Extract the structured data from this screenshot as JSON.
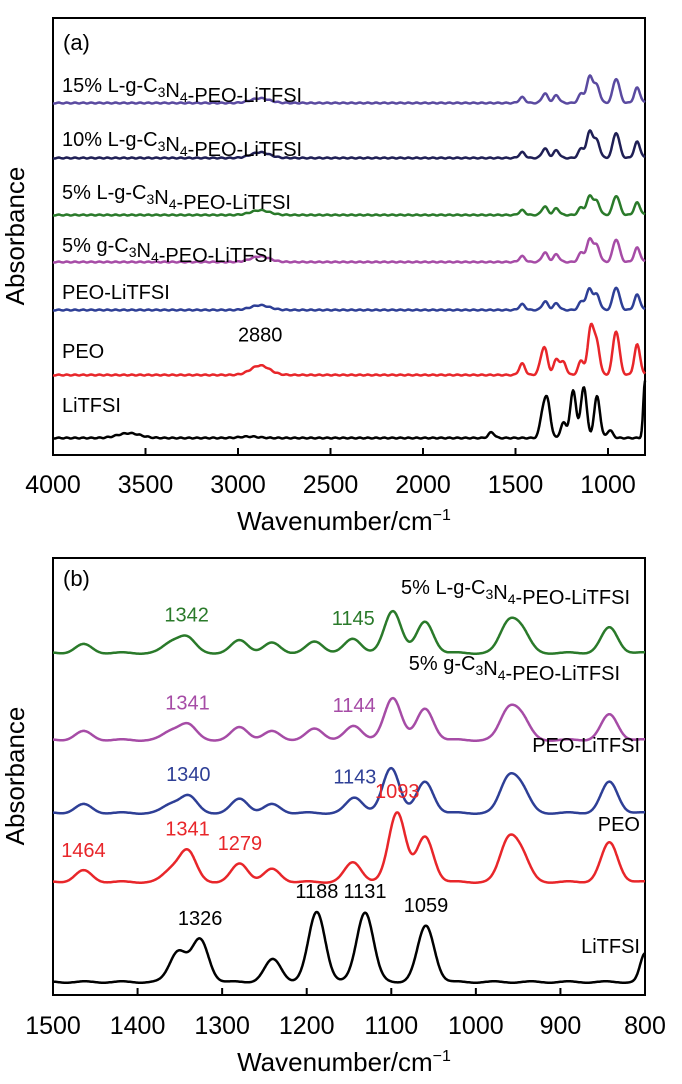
{
  "colors": {
    "LiTFSI": "#000000",
    "PEO": "#e8262a",
    "PEO-LiTFSI": "#2e3f96",
    "5% g-C3N4-PEO-LiTFSI": "#a64ca6",
    "5% L-g-C3N4-PEO-LiTFSI": "#2a7a2a",
    "10% L-g-C3N4-PEO-LiTFSI": "#1f1f55",
    "15% L-g-C3N4-PEO-LiTFSI": "#5a4aa0"
  },
  "chart_data": [
    {
      "type": "line",
      "panel": "(a)",
      "xlabel": "Wavenumber/cm",
      "xlabel_sup": "−1",
      "ylabel": "Absorbance",
      "xlim": [
        4000,
        800
      ],
      "xticks": [
        "4000",
        "3500",
        "3000",
        "2500",
        "2000",
        "1500",
        "1000"
      ],
      "xtick_values": [
        4000,
        3500,
        3000,
        2500,
        2000,
        1500,
        1000
      ],
      "series": [
        {
          "key": "LiTFSI",
          "name": "LiTFSI",
          "label_parts": [
            {
              "t": "LiTFSI"
            }
          ],
          "offset": 0,
          "peaks": [
            [
              3620,
              0.3
            ],
            [
              3560,
              0.3
            ],
            [
              2940,
              0.15
            ],
            [
              1630,
              0.6
            ],
            [
              1352,
              2.5
            ],
            [
              1326,
              3.5
            ],
            [
              1240,
              1.6
            ],
            [
              1188,
              5.0
            ],
            [
              1131,
              5.4
            ],
            [
              1059,
              4.4
            ],
            [
              990,
              0.8
            ],
            [
              800,
              6.0
            ]
          ]
        },
        {
          "key": "PEO",
          "name": "PEO",
          "label_parts": [
            {
              "t": "PEO"
            }
          ],
          "offset": 1,
          "peaks": [
            [
              2880,
              1.0
            ],
            [
              1464,
              1.2
            ],
            [
              1360,
              1.0
            ],
            [
              1341,
              2.4
            ],
            [
              1279,
              1.6
            ],
            [
              1241,
              1.3
            ],
            [
              1145,
              1.5
            ],
            [
              1093,
              5.0
            ],
            [
              1060,
              3.2
            ],
            [
              962,
              3.2
            ],
            [
              946,
              2.0
            ],
            [
              842,
              3.2
            ]
          ],
          "annotation": "2880"
        },
        {
          "key": "PEO-LiTFSI",
          "name": "PEO-LiTFSI",
          "label_parts": [
            {
              "t": "PEO-LiTFSI"
            }
          ],
          "offset": 2,
          "peaks": [
            [
              2880,
              0.5
            ],
            [
              1464,
              0.6
            ],
            [
              1340,
              0.9
            ],
            [
              1279,
              0.7
            ],
            [
              1143,
              0.9
            ],
            [
              1100,
              2.2
            ],
            [
              1060,
              1.6
            ],
            [
              962,
              1.6
            ],
            [
              946,
              1.1
            ],
            [
              842,
              1.6
            ]
          ]
        },
        {
          "key": "5% g-C3N4-PEO-LiTFSI",
          "name": "5% g-C3N4-PEO-LiTFSI",
          "label_parts": [
            {
              "t": "5% g-C"
            },
            {
              "t": "3",
              "sub": true
            },
            {
              "t": "N"
            },
            {
              "t": "4",
              "sub": true
            },
            {
              "t": "-PEO-LiTFSI"
            }
          ],
          "offset": 3,
          "peaks": [
            [
              2880,
              0.6
            ],
            [
              1464,
              0.6
            ],
            [
              1341,
              1.0
            ],
            [
              1279,
              0.8
            ],
            [
              1144,
              1.0
            ],
            [
              1098,
              2.4
            ],
            [
              1060,
              1.7
            ],
            [
              962,
              1.6
            ],
            [
              946,
              1.1
            ],
            [
              842,
              1.5
            ]
          ]
        },
        {
          "key": "5% L-g-C3N4-PEO-LiTFSI",
          "name": "5% L-g-C3N4-PEO-LiTFSI",
          "label_parts": [
            {
              "t": "5% L-g-C"
            },
            {
              "t": "3",
              "sub": true
            },
            {
              "t": "N"
            },
            {
              "t": "4",
              "sub": true
            },
            {
              "t": "-PEO-LiTFSI"
            }
          ],
          "offset": 4,
          "peaks": [
            [
              2880,
              0.5
            ],
            [
              1464,
              0.5
            ],
            [
              1342,
              0.9
            ],
            [
              1279,
              0.7
            ],
            [
              1145,
              0.8
            ],
            [
              1098,
              2.0
            ],
            [
              1060,
              1.4
            ],
            [
              962,
              1.3
            ],
            [
              946,
              1.0
            ],
            [
              842,
              1.3
            ]
          ]
        },
        {
          "key": "10% L-g-C3N4-PEO-LiTFSI",
          "name": "10% L-g-C3N4-PEO-LiTFSI",
          "label_parts": [
            {
              "t": "10% L-g-C"
            },
            {
              "t": "3",
              "sub": true
            },
            {
              "t": "N"
            },
            {
              "t": "4",
              "sub": true
            },
            {
              "t": "-PEO-LiTFSI"
            }
          ],
          "offset": 5,
          "peaks": [
            [
              2880,
              0.6
            ],
            [
              1464,
              0.6
            ],
            [
              1341,
              1.0
            ],
            [
              1279,
              0.8
            ],
            [
              1144,
              1.0
            ],
            [
              1098,
              2.8
            ],
            [
              1060,
              1.8
            ],
            [
              962,
              1.8
            ],
            [
              946,
              1.2
            ],
            [
              842,
              1.7
            ]
          ]
        },
        {
          "key": "15% L-g-C3N4-PEO-LiTFSI",
          "name": "15% L-g-C3N4-PEO-LiTFSI",
          "label_parts": [
            {
              "t": "15% L-g-C"
            },
            {
              "t": "3",
              "sub": true
            },
            {
              "t": "N"
            },
            {
              "t": "4",
              "sub": true
            },
            {
              "t": "-PEO-LiTFSI"
            }
          ],
          "offset": 6,
          "peaks": [
            [
              2880,
              0.5
            ],
            [
              1464,
              0.6
            ],
            [
              1341,
              1.0
            ],
            [
              1279,
              0.8
            ],
            [
              1144,
              1.0
            ],
            [
              1098,
              2.8
            ],
            [
              1060,
              1.8
            ],
            [
              962,
              1.7
            ],
            [
              946,
              1.2
            ],
            [
              842,
              1.6
            ]
          ]
        }
      ]
    },
    {
      "type": "line",
      "panel": "(b)",
      "xlabel": "Wavenumber/cm",
      "xlabel_sup": "−1",
      "ylabel": "Absorbance",
      "xlim": [
        1500,
        800
      ],
      "xticks": [
        "1500",
        "1400",
        "1300",
        "1200",
        "1100",
        "1000",
        "900",
        "800"
      ],
      "xtick_values": [
        1500,
        1400,
        1300,
        1200,
        1100,
        1000,
        900,
        800
      ],
      "series": [
        {
          "key": "LiTFSI",
          "name": "LiTFSI",
          "label_parts": [
            {
              "t": "LiTFSI"
            }
          ],
          "offset": 0,
          "peaks": [
            [
              1352,
              2.2
            ],
            [
              1326,
              3.0
            ],
            [
              1240,
              1.6
            ],
            [
              1188,
              5.0
            ],
            [
              1131,
              5.0
            ],
            [
              1059,
              4.0
            ],
            [
              800,
              2.0
            ]
          ],
          "annotations": [
            {
              "text": "1326",
              "x": 1326,
              "color": "#000000"
            },
            {
              "text": "1188",
              "x": 1188,
              "color": "#000000"
            },
            {
              "text": "1131",
              "x": 1131,
              "color": "#000000"
            },
            {
              "text": "1059",
              "x": 1059,
              "color": "#000000"
            }
          ]
        },
        {
          "key": "PEO",
          "name": "PEO",
          "label_parts": [
            {
              "t": "PEO"
            }
          ],
          "offset": 1,
          "peaks": [
            [
              1464,
              0.8
            ],
            [
              1360,
              0.8
            ],
            [
              1341,
              2.2
            ],
            [
              1279,
              1.3
            ],
            [
              1241,
              0.9
            ],
            [
              1145,
              1.4
            ],
            [
              1093,
              5.0
            ],
            [
              1060,
              3.2
            ],
            [
              962,
              2.8
            ],
            [
              946,
              1.8
            ],
            [
              842,
              2.8
            ]
          ],
          "annotations": [
            {
              "text": "1464",
              "x": 1464,
              "color": "#e8262a"
            },
            {
              "text": "1341",
              "x": 1341,
              "color": "#e8262a"
            },
            {
              "text": "1279",
              "x": 1279,
              "color": "#e8262a"
            },
            {
              "text": "1093",
              "x": 1093,
              "color": "#e8262a"
            }
          ]
        },
        {
          "key": "PEO-LiTFSI",
          "name": "PEO-LiTFSI",
          "label_parts": [
            {
              "t": "PEO-LiTFSI"
            }
          ],
          "offset": 2,
          "peaks": [
            [
              1464,
              0.6
            ],
            [
              1360,
              0.6
            ],
            [
              1340,
              1.2
            ],
            [
              1279,
              1.0
            ],
            [
              1241,
              0.6
            ],
            [
              1143,
              1.1
            ],
            [
              1100,
              3.2
            ],
            [
              1060,
              2.2
            ],
            [
              962,
              2.3
            ],
            [
              946,
              1.6
            ],
            [
              842,
              2.2
            ]
          ],
          "annotations": [
            {
              "text": "1340",
              "x": 1340,
              "color": "#2e3f96"
            },
            {
              "text": "1143",
              "x": 1143,
              "color": "#2e3f96"
            }
          ]
        },
        {
          "key": "5% g-C3N4-PEO-LiTFSI",
          "name": "5% g-C3N4-PEO-LiTFSI",
          "label_parts": [
            {
              "t": "5% g-C"
            },
            {
              "t": "3",
              "sub": true
            },
            {
              "t": "N"
            },
            {
              "t": "4",
              "sub": true
            },
            {
              "t": "-PEO-LiTFSI"
            }
          ],
          "offset": 3,
          "peaks": [
            [
              1464,
              0.6
            ],
            [
              1360,
              0.6
            ],
            [
              1341,
              1.1
            ],
            [
              1279,
              0.9
            ],
            [
              1241,
              0.6
            ],
            [
              1190,
              0.8
            ],
            [
              1144,
              1.0
            ],
            [
              1098,
              3.0
            ],
            [
              1060,
              2.2
            ],
            [
              962,
              2.0
            ],
            [
              946,
              1.5
            ],
            [
              842,
              1.8
            ]
          ],
          "annotations": [
            {
              "text": "1341",
              "x": 1341,
              "color": "#a64ca6"
            },
            {
              "text": "1144",
              "x": 1144,
              "color": "#a64ca6"
            }
          ]
        },
        {
          "key": "5% L-g-C3N4-PEO-LiTFSI",
          "name": "5% L-g-C3N4-PEO-LiTFSI",
          "label_parts": [
            {
              "t": "5% L-g-C"
            },
            {
              "t": "3",
              "sub": true
            },
            {
              "t": "N"
            },
            {
              "t": "4",
              "sub": true
            },
            {
              "t": "-PEO-LiTFSI"
            }
          ],
          "offset": 4,
          "peaks": [
            [
              1464,
              0.6
            ],
            [
              1360,
              0.7
            ],
            [
              1342,
              1.1
            ],
            [
              1279,
              0.9
            ],
            [
              1241,
              0.7
            ],
            [
              1190,
              0.8
            ],
            [
              1145,
              1.0
            ],
            [
              1098,
              3.0
            ],
            [
              1060,
              2.2
            ],
            [
              962,
              2.0
            ],
            [
              946,
              1.5
            ],
            [
              842,
              1.8
            ]
          ],
          "annotations": [
            {
              "text": "1342",
              "x": 1342,
              "color": "#2a7a2a"
            },
            {
              "text": "1145",
              "x": 1145,
              "color": "#2a7a2a"
            }
          ]
        }
      ]
    }
  ]
}
